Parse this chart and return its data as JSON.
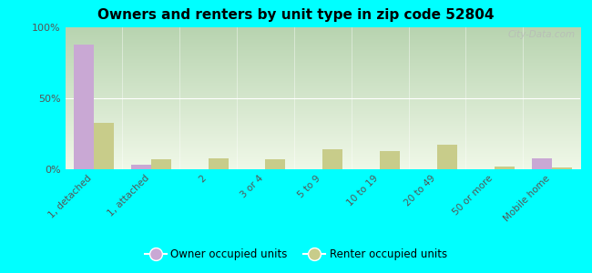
{
  "title": "Owners and renters by unit type in zip code 52804",
  "categories": [
    "1, detached",
    "1, attached",
    "2",
    "3 or 4",
    "5 to 9",
    "10 to 19",
    "20 to 49",
    "50 or more",
    "Mobile home"
  ],
  "owner_values": [
    88,
    3,
    0,
    0,
    0,
    0,
    0,
    0,
    8
  ],
  "renter_values": [
    33,
    7,
    8,
    7,
    14,
    13,
    17,
    2,
    1
  ],
  "owner_color": "#c9a8d4",
  "renter_color": "#c8cc8a",
  "background_color": "#00ffff",
  "gradient_top": "#b8d4b0",
  "gradient_bottom": "#f0f8e8",
  "ylim": [
    0,
    100
  ],
  "yticks": [
    0,
    50,
    100
  ],
  "ytick_labels": [
    "0%",
    "50%",
    "100%"
  ],
  "watermark": "City-Data.com",
  "legend_owner": "Owner occupied units",
  "legend_renter": "Renter occupied units",
  "bar_width": 0.35
}
